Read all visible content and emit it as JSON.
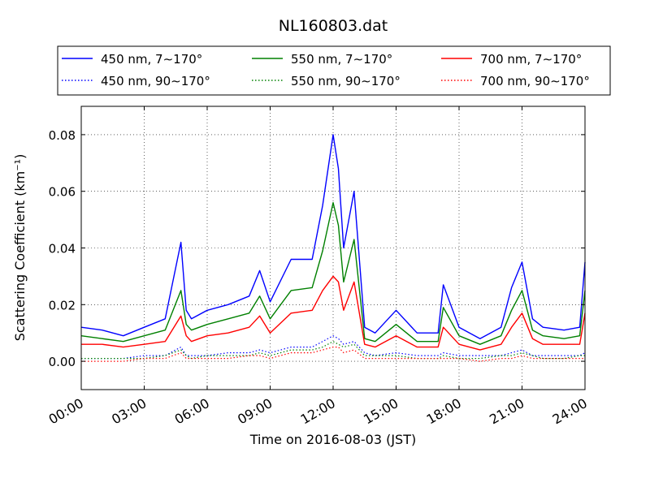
{
  "chart_data": {
    "type": "line",
    "title": "NL160803.dat",
    "xlabel": "Time on 2016-08-03 (JST)",
    "ylabel": "Scattering Coefficient (km⁻¹)",
    "xlim": [
      "00:00",
      "24:00"
    ],
    "ylim": [
      -0.01,
      0.09
    ],
    "x_ticks": [
      "00:00",
      "03:00",
      "06:00",
      "09:00",
      "12:00",
      "15:00",
      "18:00",
      "21:00",
      "24:00"
    ],
    "y_ticks": [
      "0.00",
      "0.02",
      "0.04",
      "0.06",
      "0.08"
    ],
    "grid": true,
    "legend_position": "top, above plot",
    "x": [
      "00:00",
      "01:00",
      "02:00",
      "03:00",
      "04:00",
      "04:45",
      "05:00",
      "05:15",
      "06:00",
      "07:00",
      "08:00",
      "08:30",
      "09:00",
      "10:00",
      "11:00",
      "11:30",
      "12:00",
      "12:15",
      "12:30",
      "13:00",
      "13:30",
      "14:00",
      "15:00",
      "16:00",
      "17:00",
      "17:15",
      "18:00",
      "19:00",
      "20:00",
      "20:30",
      "21:00",
      "21:30",
      "22:00",
      "23:00",
      "23:45",
      "24:00"
    ],
    "series": [
      {
        "name": "450 nm, 7∼170°",
        "color": "#0000ff",
        "style": "solid",
        "values": [
          0.012,
          0.011,
          0.009,
          0.012,
          0.015,
          0.042,
          0.018,
          0.015,
          0.018,
          0.02,
          0.023,
          0.032,
          0.021,
          0.036,
          0.036,
          0.055,
          0.08,
          0.068,
          0.04,
          0.06,
          0.012,
          0.01,
          0.018,
          0.01,
          0.01,
          0.027,
          0.012,
          0.008,
          0.012,
          0.026,
          0.035,
          0.015,
          0.012,
          0.011,
          0.012,
          0.035
        ]
      },
      {
        "name": "450 nm, 90∼170°",
        "color": "#0000ff",
        "style": "dotted",
        "values": [
          0.001,
          0.001,
          0.001,
          0.002,
          0.002,
          0.005,
          0.002,
          0.002,
          0.002,
          0.003,
          0.003,
          0.004,
          0.003,
          0.005,
          0.005,
          0.007,
          0.009,
          0.008,
          0.006,
          0.007,
          0.003,
          0.002,
          0.003,
          0.002,
          0.002,
          0.003,
          0.002,
          0.002,
          0.002,
          0.003,
          0.004,
          0.002,
          0.002,
          0.002,
          0.002,
          0.003
        ]
      },
      {
        "name": "550 nm, 7∼170°",
        "color": "#008000",
        "style": "solid",
        "values": [
          0.009,
          0.008,
          0.007,
          0.009,
          0.011,
          0.025,
          0.013,
          0.011,
          0.013,
          0.015,
          0.017,
          0.023,
          0.015,
          0.025,
          0.026,
          0.039,
          0.056,
          0.048,
          0.028,
          0.043,
          0.008,
          0.007,
          0.013,
          0.007,
          0.007,
          0.019,
          0.009,
          0.006,
          0.009,
          0.018,
          0.025,
          0.011,
          0.009,
          0.008,
          0.009,
          0.025
        ]
      },
      {
        "name": "550 nm, 90∼170°",
        "color": "#008000",
        "style": "dotted",
        "values": [
          0.001,
          0.001,
          0.001,
          0.001,
          0.002,
          0.004,
          0.002,
          0.001,
          0.002,
          0.002,
          0.002,
          0.003,
          0.002,
          0.004,
          0.004,
          0.005,
          0.007,
          0.006,
          0.005,
          0.006,
          0.002,
          0.002,
          0.002,
          0.001,
          0.001,
          0.002,
          0.001,
          0.001,
          0.002,
          0.002,
          0.003,
          0.002,
          0.001,
          0.001,
          0.002,
          0.002
        ]
      },
      {
        "name": "700 nm, 7∼170°",
        "color": "#ff0000",
        "style": "solid",
        "values": [
          0.006,
          0.006,
          0.005,
          0.006,
          0.007,
          0.016,
          0.009,
          0.007,
          0.009,
          0.01,
          0.012,
          0.016,
          0.01,
          0.017,
          0.018,
          0.025,
          0.03,
          0.028,
          0.018,
          0.028,
          0.006,
          0.005,
          0.009,
          0.005,
          0.005,
          0.012,
          0.006,
          0.004,
          0.006,
          0.012,
          0.017,
          0.008,
          0.006,
          0.006,
          0.006,
          0.017
        ]
      },
      {
        "name": "700 nm, 90∼170°",
        "color": "#ff0000",
        "style": "dotted",
        "values": [
          0.0,
          0.0,
          0.0,
          0.001,
          0.001,
          0.003,
          0.001,
          0.001,
          0.001,
          0.001,
          0.002,
          0.002,
          0.001,
          0.003,
          0.003,
          0.004,
          0.005,
          0.005,
          0.003,
          0.004,
          0.001,
          0.001,
          0.001,
          0.001,
          0.001,
          0.001,
          0.001,
          0.0,
          0.001,
          0.001,
          0.002,
          0.001,
          0.001,
          0.001,
          0.001,
          0.001
        ]
      }
    ]
  }
}
